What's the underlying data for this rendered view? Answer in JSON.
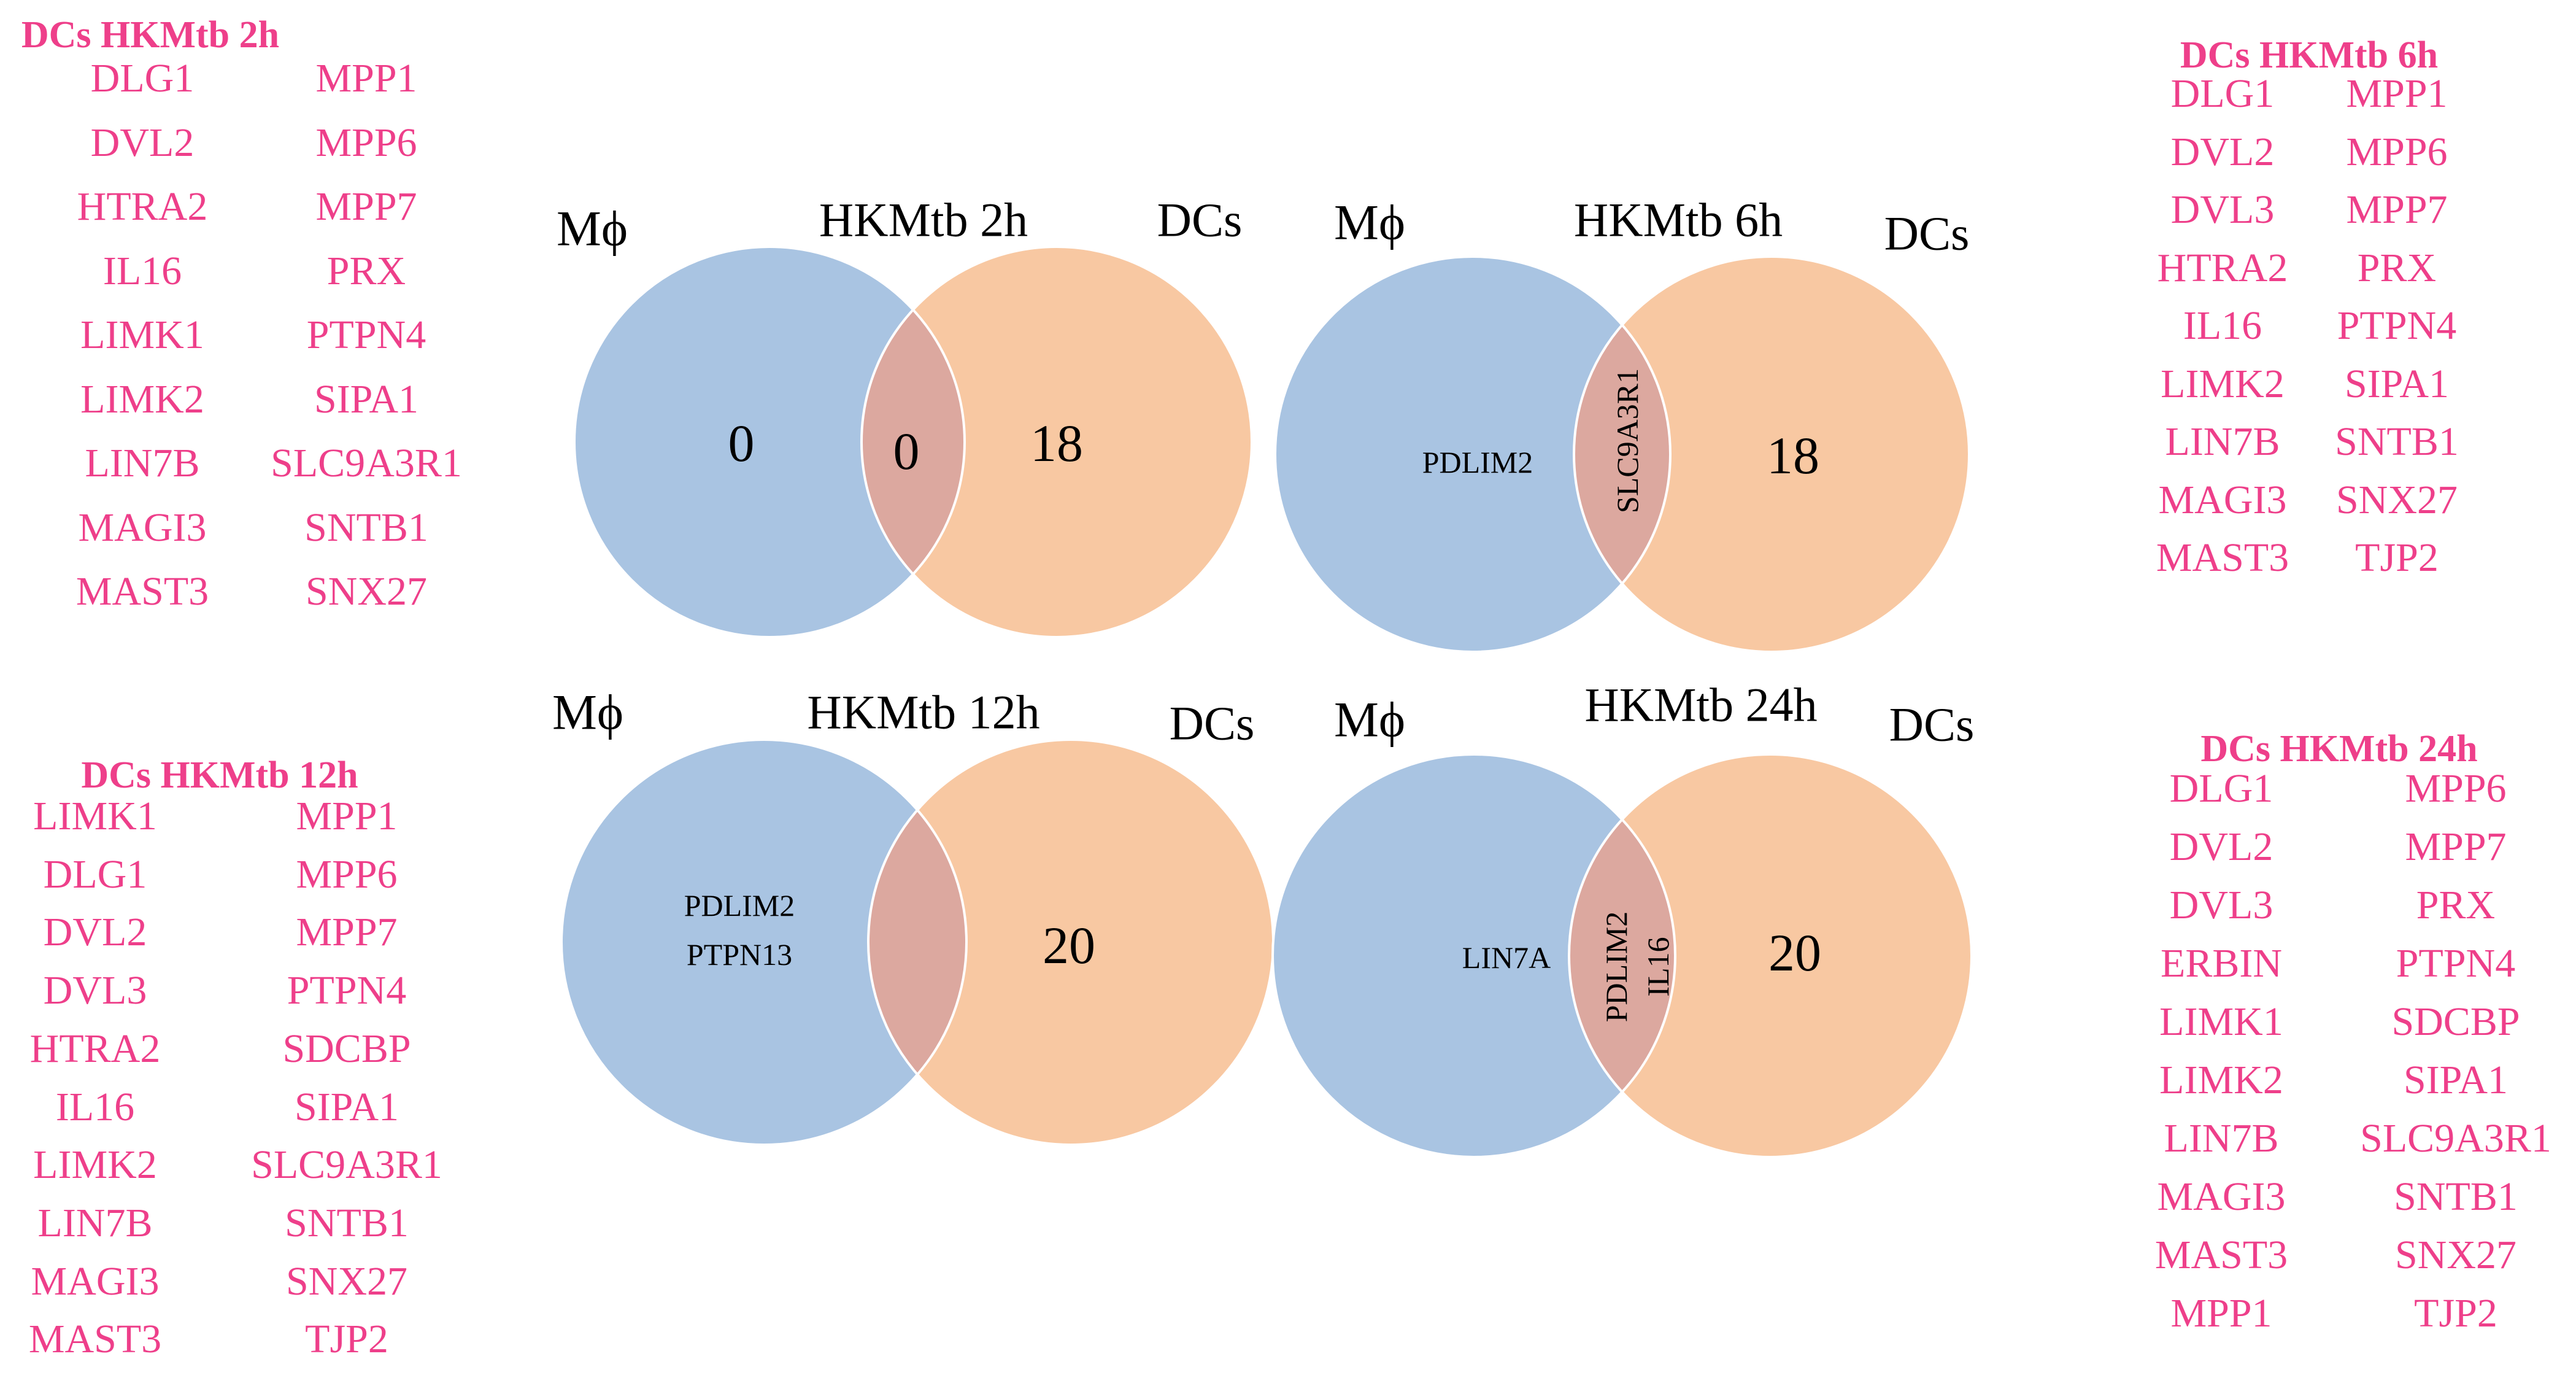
{
  "colors": {
    "gene_text": "#ee3f8a",
    "mphi_fill": "#a9c4e2",
    "dc_fill": "#f8c8a2",
    "overlap_fill": "#dca89f",
    "outline": "#ffffff"
  },
  "gene_lists": [
    {
      "title": "DCs HKMtb 2h",
      "col1": [
        "DLG1",
        "DVL2",
        "HTRA2",
        "IL16",
        "LIMK1",
        "LIMK2",
        "LIN7B",
        "MAGI3",
        "MAST3"
      ],
      "col2": [
        "MPP1",
        "MPP6",
        "MPP7",
        "PRX",
        "PTPN4",
        "SIPA1",
        "SLC9A3R1",
        "SNTB1",
        "SNX27"
      ]
    },
    {
      "title": "DCs HKMtb 6h",
      "col1": [
        "DLG1",
        "DVL2",
        "DVL3",
        "HTRA2",
        "IL16",
        "LIMK2",
        "LIN7B",
        "MAGI3",
        "MAST3"
      ],
      "col2": [
        "MPP1",
        "MPP6",
        "MPP7",
        "PRX",
        "PTPN4",
        "SIPA1",
        "SNTB1",
        "SNX27",
        "TJP2"
      ]
    },
    {
      "title": "DCs HKMtb 12h",
      "col1": [
        "LIMK1",
        "DLG1",
        "DVL2",
        "DVL3",
        "HTRA2",
        "IL16",
        "LIMK2",
        "LIN7B",
        "MAGI3",
        "MAST3"
      ],
      "col2": [
        "MPP1",
        "MPP6",
        "MPP7",
        "PTPN4",
        "SDCBP",
        "SIPA1",
        "SLC9A3R1",
        "SNTB1",
        "SNX27",
        "TJP2"
      ]
    },
    {
      "title": "DCs HKMtb 24h",
      "col1": [
        "DLG1",
        "DVL2",
        "DVL3",
        "ERBIN",
        "LIMK1",
        "LIMK2",
        "LIN7B",
        "MAGI3",
        "MAST3",
        "MPP1"
      ],
      "col2": [
        "MPP6",
        "MPP7",
        "PRX",
        "PTPN4",
        "SDCBP",
        "SIPA1",
        "SLC9A3R1",
        "SNTB1",
        "SNX27",
        "TJP2"
      ]
    }
  ],
  "venns": [
    {
      "title": "HKMtb 2h",
      "left_label": "Mϕ",
      "right_label": "DCs",
      "left_only": [
        "0"
      ],
      "overlap": [
        "0"
      ],
      "overlap_vertical": false,
      "right_only": "18"
    },
    {
      "title": "HKMtb 6h",
      "left_label": "Mϕ",
      "right_label": "DCs",
      "left_only": [
        "PDLIM2"
      ],
      "overlap": [
        "SLC9A3R1"
      ],
      "overlap_vertical": true,
      "right_only": "18"
    },
    {
      "title": "HKMtb 12h",
      "left_label": "Mϕ",
      "right_label": "DCs",
      "left_only": [
        "PDLIM2",
        "PTPN13"
      ],
      "overlap": [],
      "overlap_vertical": false,
      "right_only": "20"
    },
    {
      "title": "HKMtb 24h",
      "left_label": "Mϕ",
      "right_label": "DCs",
      "left_only": [
        "LIN7A"
      ],
      "overlap": [
        "PDLIM2",
        "IL16"
      ],
      "overlap_vertical": true,
      "right_only": "20"
    }
  ]
}
